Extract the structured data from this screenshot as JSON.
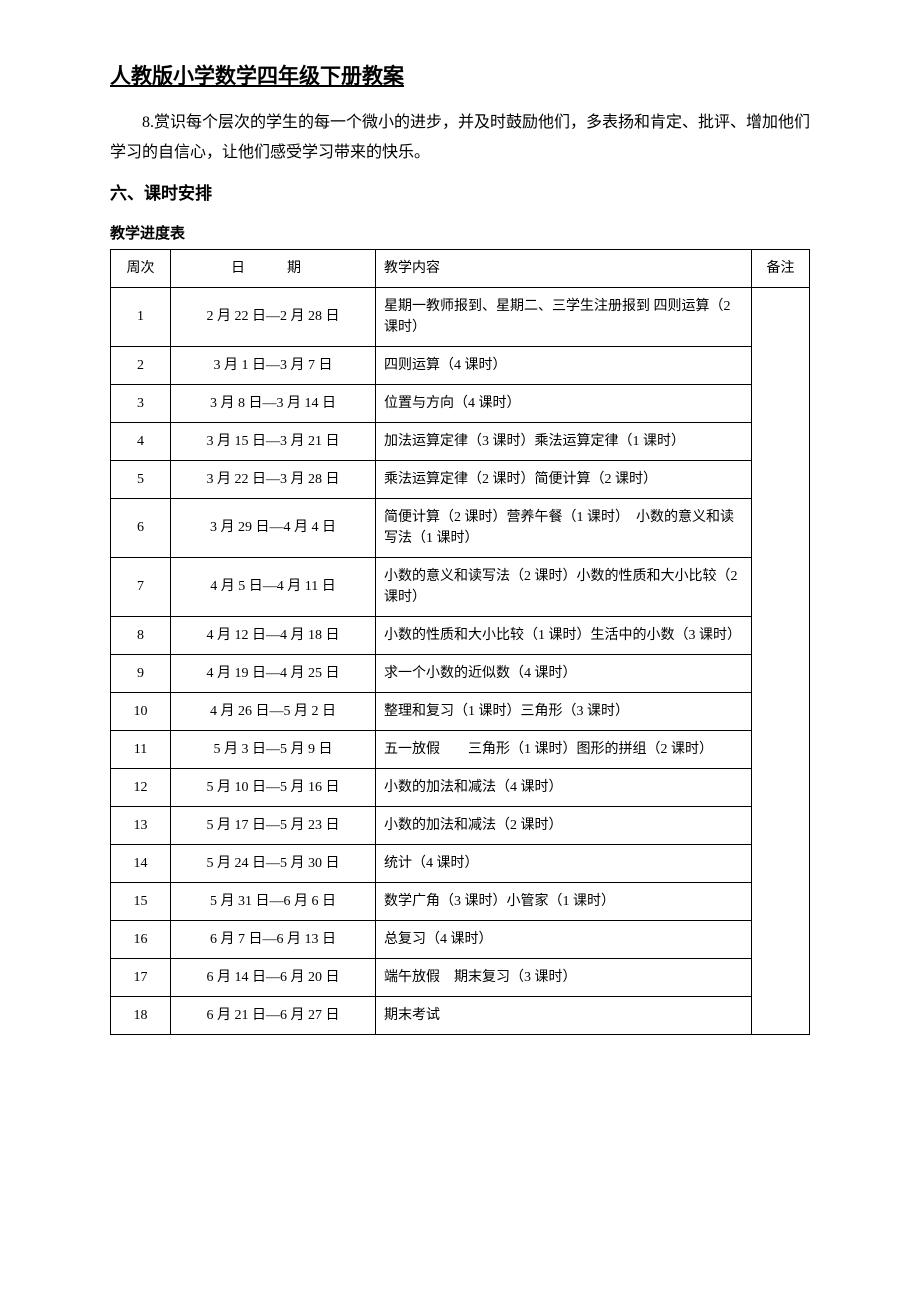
{
  "doc_title": "人教版小学数学四年级下册教案",
  "paragraph8": "8.赏识每个层次的学生的每一个微小的进步，并及时鼓励他们，多表扬和肯定、批评、增加他们学习的自信心，让他们感受学习带来的快乐。",
  "section_heading": "六、课时安排",
  "table_caption": "教学进度表",
  "table": {
    "columns": {
      "week": "周次",
      "date": "日　期",
      "content": "教学内容",
      "note": "备注"
    },
    "rows": [
      {
        "week": "1",
        "date": "2 月 22 日—2 月 28 日",
        "content": "星期一教师报到、星期二、三学生注册报到 四则运算（2 课时）",
        "tall": true
      },
      {
        "week": "2",
        "date": "3 月 1 日—3 月 7 日",
        "content": "四则运算（4 课时）"
      },
      {
        "week": "3",
        "date": "3 月 8 日—3 月 14 日",
        "content": "位置与方向（4 课时）"
      },
      {
        "week": "4",
        "date": "3 月 15 日—3 月 21 日",
        "content": "加法运算定律（3 课时）乘法运算定律（1 课时）"
      },
      {
        "week": "5",
        "date": "3 月 22 日—3 月 28 日",
        "content": "乘法运算定律（2 课时）简便计算（2 课时）"
      },
      {
        "week": "6",
        "date": "3 月 29 日—4 月 4 日",
        "content": "简便计算（2 课时）营养午餐（1 课时）　小数的意义和读写法（1 课时）"
      },
      {
        "week": "7",
        "date": "4 月 5 日—4 月 11 日",
        "content": "小数的意义和读写法（2 课时）小数的性质和大小比较（2 课时）"
      },
      {
        "week": "8",
        "date": "4 月 12 日—4 月 18 日",
        "content": "小数的性质和大小比较（1 课时）生活中的小数（3 课时）"
      },
      {
        "week": "9",
        "date": "4 月 19 日—4 月 25 日",
        "content": "求一个小数的近似数（4 课时）"
      },
      {
        "week": "10",
        "date": "4 月 26 日—5 月 2 日",
        "content": "整理和复习（1 课时）三角形（3 课时）"
      },
      {
        "week": "11",
        "date": "5 月 3 日—5 月 9 日",
        "content": "五一放假　　三角形（1 课时）图形的拼组（2 课时）"
      },
      {
        "week": "12",
        "date": "5 月 10 日—5 月 16 日",
        "content": "小数的加法和减法（4 课时）"
      },
      {
        "week": "13",
        "date": "5 月 17 日—5 月 23 日",
        "content": "小数的加法和减法（2 课时）"
      },
      {
        "week": "14",
        "date": "5 月 24 日—5 月 30 日",
        "content": "统计（4 课时）"
      },
      {
        "week": "15",
        "date": "5 月 31 日—6 月 6 日",
        "content": "数学广角（3 课时）小管家（1 课时）"
      },
      {
        "week": "16",
        "date": "6 月 7 日—6 月 13 日",
        "content": "总复习（4 课时）"
      },
      {
        "week": "17",
        "date": "6 月 14 日—6 月 20 日",
        "content": "端午放假　期末复习（3 课时）"
      },
      {
        "week": "18",
        "date": "6 月 21 日—6 月 27 日",
        "content": "期末考试"
      }
    ]
  }
}
